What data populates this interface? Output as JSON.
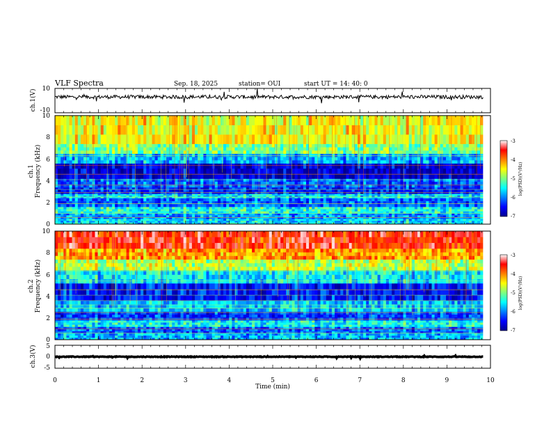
{
  "header": {
    "title": "VLF Spectra",
    "date": "Sep. 18, 2025",
    "station": "station= OUI",
    "start": "start  UT  =   14: 40: 0"
  },
  "chart_data": [
    {
      "id": "ch1-waveform",
      "type": "line",
      "ylabel": "ch.1(V)",
      "xlim": [
        0,
        10
      ],
      "ylim": [
        -10,
        10
      ],
      "y_ticks": [
        "10",
        "-10"
      ],
      "baseline": 3,
      "noise_range": [
        1.5,
        4.5
      ]
    },
    {
      "id": "ch1-spectrogram",
      "type": "heatmap",
      "ylabel": "ch.1",
      "ylabel2": "Frequency (kHz)",
      "xlim": [
        0,
        10
      ],
      "data_xmax": 9.83,
      "ylim": [
        0,
        10
      ],
      "y_ticks": [
        "0",
        "2",
        "4",
        "6",
        "8",
        "10"
      ],
      "colorbar": {
        "label": "log(PSD)(V²/Hz)",
        "range": [
          -7,
          -3
        ],
        "ticks": [
          "-3",
          "-4",
          "-5",
          "-6",
          "-7"
        ]
      },
      "bands": [
        {
          "f0": 0.0,
          "f1": 0.5,
          "level": 0.35
        },
        {
          "f0": 0.5,
          "f1": 1.0,
          "level": 0.28
        },
        {
          "f0": 1.0,
          "f1": 1.6,
          "level": 0.4
        },
        {
          "f0": 1.6,
          "f1": 2.4,
          "level": 0.22
        },
        {
          "f0": 2.4,
          "f1": 2.8,
          "level": 0.35
        },
        {
          "f0": 2.8,
          "f1": 3.4,
          "level": 0.15
        },
        {
          "f0": 3.4,
          "f1": 4.2,
          "level": 0.22
        },
        {
          "f0": 4.2,
          "f1": 5.6,
          "level": 0.08
        },
        {
          "f0": 5.6,
          "f1": 6.5,
          "level": 0.3
        },
        {
          "f0": 6.5,
          "f1": 7.4,
          "level": 0.5
        },
        {
          "f0": 7.4,
          "f1": 10.0,
          "level": 0.62
        }
      ]
    },
    {
      "id": "ch2-spectrogram",
      "type": "heatmap",
      "ylabel": "ch.2",
      "ylabel2": "Frequency (kHz)",
      "xlim": [
        0,
        10
      ],
      "data_xmax": 9.83,
      "ylim": [
        0,
        10
      ],
      "y_ticks": [
        "0",
        "2",
        "4",
        "6",
        "8",
        "10"
      ],
      "colorbar": {
        "label": "log(PSD)(V²/Hz)",
        "range": [
          -7,
          -3
        ],
        "ticks": [
          "-3",
          "-4",
          "-5",
          "-6",
          "-7"
        ]
      },
      "bands": [
        {
          "f0": 0.0,
          "f1": 0.6,
          "level": 0.3
        },
        {
          "f0": 0.6,
          "f1": 1.2,
          "level": 0.22
        },
        {
          "f0": 1.2,
          "f1": 1.8,
          "level": 0.38
        },
        {
          "f0": 1.8,
          "f1": 2.6,
          "level": 0.18
        },
        {
          "f0": 2.6,
          "f1": 3.6,
          "level": 0.32
        },
        {
          "f0": 3.6,
          "f1": 5.2,
          "level": 0.14
        },
        {
          "f0": 5.2,
          "f1": 6.4,
          "level": 0.36
        },
        {
          "f0": 6.4,
          "f1": 7.4,
          "level": 0.55
        },
        {
          "f0": 7.4,
          "f1": 8.4,
          "level": 0.72
        },
        {
          "f0": 8.4,
          "f1": 10.0,
          "level": 0.86
        }
      ]
    },
    {
      "id": "ch3-waveform",
      "type": "line",
      "ylabel": "ch.3(V)",
      "xlim": [
        0,
        10
      ],
      "ylim": [
        -5,
        5
      ],
      "y_ticks": [
        "5",
        "0",
        "-5"
      ],
      "baseline": 0,
      "noise_range": [
        -0.15,
        0.15
      ]
    }
  ],
  "x_axis": {
    "label": "Time (min)",
    "ticks": [
      "0",
      "1",
      "2",
      "3",
      "4",
      "5",
      "6",
      "7",
      "8",
      "9",
      "10"
    ]
  }
}
